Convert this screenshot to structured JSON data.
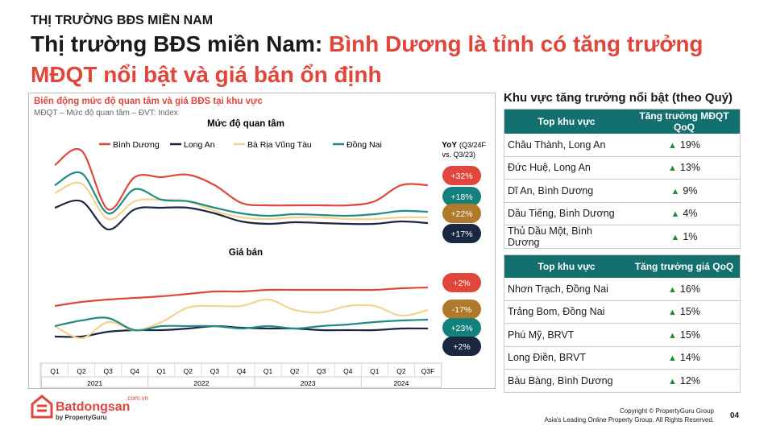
{
  "header": {
    "kicker": "THỊ TRƯỜNG BĐS MIỀN NAM",
    "title_black": "Thị trường BĐS miền Nam: ",
    "title_red": "Bình Dương là tỉnh có tăng trưởng MĐQT nổi bật và giá bán ổn định"
  },
  "chart_panel": {
    "title": "Biến động mức độ quan tâm và giá BĐS tại khu vực",
    "subtitle": "MĐQT – Mức độ quan tâm – ĐVT: Index",
    "yoy_title": "YoY",
    "yoy_note": [
      "(Q3/24F",
      "vs. Q3/23)"
    ]
  },
  "chart_data": [
    {
      "type": "line",
      "title": "Mức độ quan tâm",
      "ylim": [
        0,
        130
      ],
      "series": [
        {
          "name": "Bình Dương",
          "color": "#e0463b",
          "badge_color": "#e0463b",
          "yoy": "+32%",
          "values": [
            95,
            113,
            40,
            80,
            80,
            83,
            70,
            48,
            45,
            45,
            45,
            45,
            50,
            70,
            70
          ]
        },
        {
          "name": "Long An",
          "color": "#1a2740",
          "badge_color": "#1a2740",
          "yoy": "+17%",
          "values": [
            42,
            50,
            15,
            40,
            42,
            42,
            35,
            25,
            22,
            24,
            23,
            22,
            22,
            25,
            23
          ]
        },
        {
          "name": "Bà Rịa Vũng Tàu",
          "color": "#f5d38f",
          "badge_color": "#b07a2a",
          "yoy": "+22%",
          "values": [
            60,
            72,
            28,
            50,
            52,
            50,
            38,
            30,
            28,
            30,
            30,
            28,
            28,
            30,
            30
          ]
        },
        {
          "name": "Đồng Nai",
          "color": "#1f8c86",
          "badge_color": "#13807b",
          "yoy": "+18%",
          "values": [
            70,
            85,
            35,
            65,
            52,
            50,
            42,
            35,
            32,
            34,
            33,
            32,
            34,
            38,
            37
          ]
        }
      ],
      "badge_order": [
        0,
        3,
        2,
        1
      ]
    },
    {
      "type": "line",
      "title": "Giá bán",
      "ylim": [
        0,
        100
      ],
      "categories": [
        "Q1",
        "Q2",
        "Q3",
        "Q4",
        "Q1",
        "Q2",
        "Q3",
        "Q4",
        "Q1",
        "Q2",
        "Q3",
        "Q4",
        "Q1",
        "Q2",
        "Q3F"
      ],
      "years": [
        "2021",
        "2022",
        "2023",
        "2024"
      ],
      "series": [
        {
          "color": "#e0463b",
          "badge_color": "#e0463b",
          "yoy": "+2%",
          "values": [
            50,
            55,
            58,
            60,
            62,
            65,
            68,
            68,
            70,
            70,
            70,
            70,
            70,
            72,
            73
          ]
        },
        {
          "color": "#1a2740",
          "badge_color": "#1a2740",
          "yoy": "+2%",
          "values": [
            12,
            12,
            18,
            20,
            20,
            22,
            25,
            23,
            22,
            22,
            20,
            20,
            20,
            22,
            22
          ]
        },
        {
          "color": "#f5d38f",
          "badge_color": "#b07a2a",
          "yoy": "-17%",
          "values": [
            25,
            10,
            30,
            20,
            30,
            48,
            50,
            50,
            58,
            45,
            42,
            50,
            50,
            38,
            45
          ]
        },
        {
          "color": "#1f8c86",
          "badge_color": "#13807b",
          "yoy": "+23%",
          "values": [
            25,
            32,
            35,
            20,
            25,
            25,
            25,
            22,
            25,
            22,
            25,
            27,
            30,
            32,
            33
          ]
        }
      ],
      "badge_order": [
        0,
        2,
        3,
        1
      ]
    }
  ],
  "tables_title": "Khu vực tăng trưởng nổi bật (theo Quý)",
  "tables": [
    {
      "header": [
        "Top khu vực",
        "Tăng trưởng MĐQT QoQ"
      ],
      "rows": [
        [
          "Châu Thành, Long An",
          "19%"
        ],
        [
          "Đức Huệ, Long An",
          "13%"
        ],
        [
          "Dĩ An, Bình Dương",
          "9%"
        ],
        [
          "Dầu Tiếng, Bình Dương",
          "4%"
        ],
        [
          "Thủ Dầu Một, Bình Dương",
          "1%"
        ]
      ]
    },
    {
      "header": [
        "Top khu vực",
        "Tăng trưởng giá QoQ"
      ],
      "rows": [
        [
          "Nhơn Trạch, Đồng Nai",
          "16%"
        ],
        [
          "Trảng Bom, Đồng Nai",
          "15%"
        ],
        [
          "Phú Mỹ, BRVT",
          "15%"
        ],
        [
          "Long Điền, BRVT",
          "14%"
        ],
        [
          "Bàu Bàng, Bình Dương",
          "12%"
        ]
      ]
    }
  ],
  "footer": {
    "logo": "Batdongsan",
    "logo_domain": ".com.vn",
    "logo_by": "by PropertyGuru",
    "copyright": "Copyright © PropertyGuru Group",
    "rights": "Asia's Leading Online Property Group. All Rights Reserved.",
    "page": "04"
  }
}
